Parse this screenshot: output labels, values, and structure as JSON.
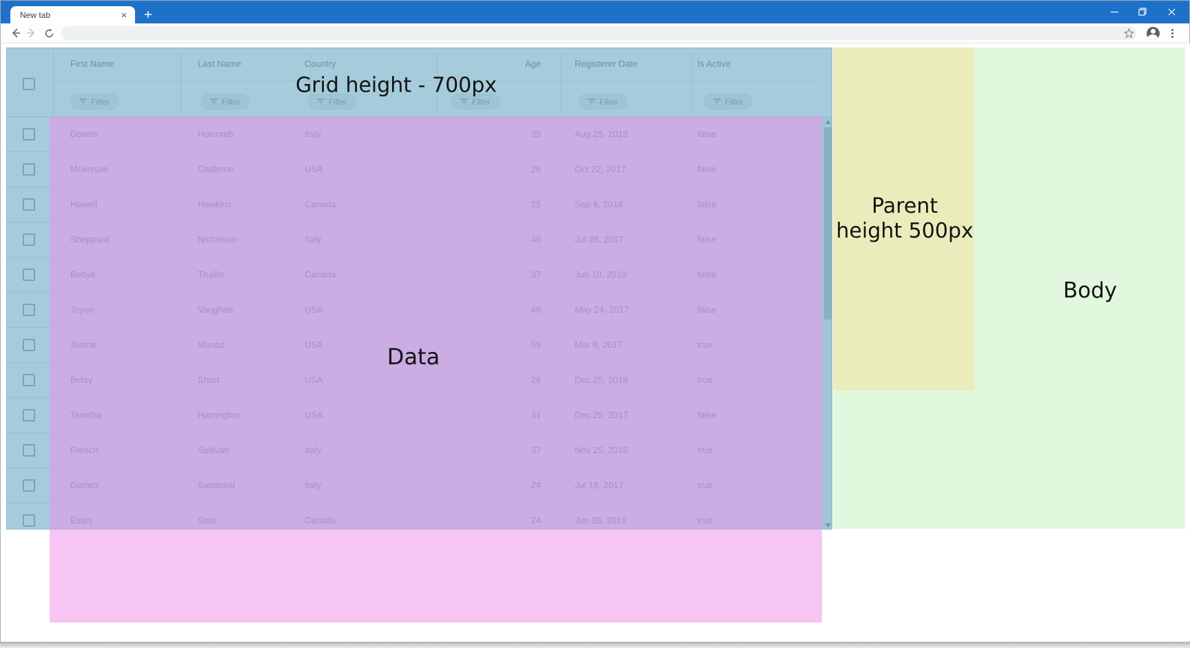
{
  "browser": {
    "tab_title": "New tab"
  },
  "grid": {
    "filter_label": "Filter",
    "columns": [
      {
        "label": "First Name"
      },
      {
        "label": "Last Name"
      },
      {
        "label": "Country"
      },
      {
        "label": "Age"
      },
      {
        "label": "Registerer Date"
      },
      {
        "label": "Is Active"
      }
    ],
    "rows": [
      {
        "first_name": "Downs",
        "last_name": "Holcomb",
        "country": "Italy",
        "age": "35",
        "registered": "Aug 25, 2018",
        "active": "false"
      },
      {
        "first_name": "Mckenzie",
        "last_name": "Calderon",
        "country": "USA",
        "age": "26",
        "registered": "Oct 22, 2017",
        "active": "false"
      },
      {
        "first_name": "Howell",
        "last_name": "Hawkins",
        "country": "Canada",
        "age": "25",
        "registered": "Sep 8, 2018",
        "active": "false"
      },
      {
        "first_name": "Sheppard",
        "last_name": "Nicholson",
        "country": "Italy",
        "age": "49",
        "registered": "Jul 28, 2017",
        "active": "false"
      },
      {
        "first_name": "Bettye",
        "last_name": "Trujillo",
        "country": "Canada",
        "age": "37",
        "registered": "Jun 10, 2019",
        "active": "false"
      },
      {
        "first_name": "Joyce",
        "last_name": "Vaughan",
        "country": "USA",
        "age": "48",
        "registered": "May 24, 2017",
        "active": "false"
      },
      {
        "first_name": "Janine",
        "last_name": "Munoz",
        "country": "USA",
        "age": "59",
        "registered": "Mar 9, 2017",
        "active": "true"
      },
      {
        "first_name": "Betsy",
        "last_name": "Short",
        "country": "USA",
        "age": "26",
        "registered": "Dec 25, 2018",
        "active": "true"
      },
      {
        "first_name": "Tanisha",
        "last_name": "Harrington",
        "country": "USA",
        "age": "31",
        "registered": "Dec 25, 2017",
        "active": "false"
      },
      {
        "first_name": "French",
        "last_name": "Sullivan",
        "country": "Italy",
        "age": "37",
        "registered": "Nov 25, 2018",
        "active": "true"
      },
      {
        "first_name": "Gomez",
        "last_name": "Sandoval",
        "country": "Italy",
        "age": "24",
        "registered": "Jul 19, 2017",
        "active": "true"
      },
      {
        "first_name": "Estes",
        "last_name": "Soto",
        "country": "Canada",
        "age": "24",
        "registered": "Jun 28, 2019",
        "active": "true"
      }
    ]
  },
  "overlays": {
    "grid": {
      "label": "Grid height - 700px",
      "color": "rgba(77,151,183,0.5)"
    },
    "data": {
      "label": "Data",
      "color": "rgba(237,143,233,0.52)"
    },
    "parent": {
      "label_line1": "Parent",
      "label_line2": "height 500px",
      "color": "rgba(243,226,151,0.5)"
    },
    "body": {
      "label": "Body",
      "color": "rgba(195,241,191,0.5)"
    }
  }
}
